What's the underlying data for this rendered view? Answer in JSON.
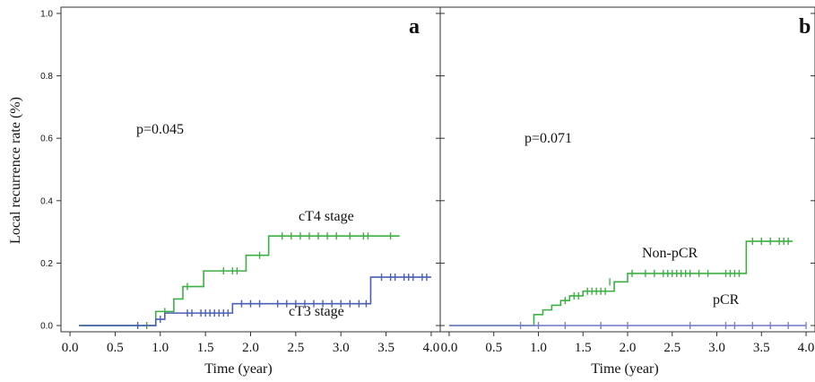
{
  "figure": {
    "ylabel": "Local recurrence rate (%)"
  },
  "chart_data": [
    {
      "type": "line",
      "panel_label": "a",
      "xlabel": "Time (year)",
      "ylabel": "Local recurrence rate (%)",
      "xlim": [
        -0.1,
        4.1
      ],
      "ylim": [
        -0.02,
        1.02
      ],
      "xticks": [
        "0.0",
        "0.5",
        "1.0",
        "1.5",
        "2.0",
        "2.5",
        "3.0",
        "3.5",
        "4.0"
      ],
      "yticks": [
        "0.0",
        "0.2",
        "0.4",
        "0.6",
        "0.8",
        "1.0"
      ],
      "pvalue_text": "p=0.045",
      "series": [
        {
          "name": "cT4 stage",
          "color": "#3cb043",
          "steps": [
            [
              0.1,
              0.0
            ],
            [
              0.95,
              0.045
            ],
            [
              1.15,
              0.085
            ],
            [
              1.25,
              0.125
            ],
            [
              1.48,
              0.175
            ],
            [
              1.95,
              0.225
            ],
            [
              2.2,
              0.287
            ]
          ],
          "end_x": 3.65,
          "censors": [
            [
              0.85,
              0.0
            ],
            [
              1.05,
              0.045
            ],
            [
              1.3,
              0.125
            ],
            [
              1.7,
              0.175
            ],
            [
              1.8,
              0.175
            ],
            [
              1.85,
              0.175
            ],
            [
              2.1,
              0.225
            ],
            [
              2.35,
              0.287
            ],
            [
              2.45,
              0.287
            ],
            [
              2.55,
              0.287
            ],
            [
              2.65,
              0.287
            ],
            [
              2.75,
              0.287
            ],
            [
              2.85,
              0.287
            ],
            [
              2.95,
              0.287
            ],
            [
              3.1,
              0.287
            ],
            [
              3.25,
              0.287
            ],
            [
              3.3,
              0.287
            ],
            [
              3.55,
              0.287
            ]
          ]
        },
        {
          "name": "cT3 stage",
          "color": "#4a5fb5",
          "steps": [
            [
              0.1,
              0.0
            ],
            [
              0.95,
              0.02
            ],
            [
              1.05,
              0.04
            ],
            [
              1.8,
              0.07
            ],
            [
              3.33,
              0.155
            ]
          ],
          "end_x": 4.0,
          "censors": [
            [
              0.75,
              0.0
            ],
            [
              1.0,
              0.02
            ],
            [
              1.3,
              0.04
            ],
            [
              1.35,
              0.04
            ],
            [
              1.45,
              0.04
            ],
            [
              1.5,
              0.04
            ],
            [
              1.55,
              0.04
            ],
            [
              1.6,
              0.04
            ],
            [
              1.65,
              0.04
            ],
            [
              1.7,
              0.04
            ],
            [
              1.75,
              0.04
            ],
            [
              1.9,
              0.07
            ],
            [
              2.0,
              0.07
            ],
            [
              2.1,
              0.07
            ],
            [
              2.3,
              0.07
            ],
            [
              2.4,
              0.07
            ],
            [
              2.5,
              0.07
            ],
            [
              2.6,
              0.07
            ],
            [
              2.7,
              0.07
            ],
            [
              2.8,
              0.07
            ],
            [
              2.9,
              0.07
            ],
            [
              3.0,
              0.07
            ],
            [
              3.1,
              0.07
            ],
            [
              3.2,
              0.07
            ],
            [
              3.28,
              0.07
            ],
            [
              3.45,
              0.155
            ],
            [
              3.55,
              0.155
            ],
            [
              3.6,
              0.155
            ],
            [
              3.7,
              0.155
            ],
            [
              3.75,
              0.155
            ],
            [
              3.8,
              0.155
            ],
            [
              3.9,
              0.155
            ],
            [
              3.95,
              0.155
            ]
          ]
        }
      ]
    },
    {
      "type": "line",
      "panel_label": "b",
      "xlabel": "Time (year)",
      "xlim": [
        -0.1,
        4.1
      ],
      "ylim": [
        -0.02,
        1.02
      ],
      "xticks": [
        "0.0",
        "0.5",
        "1.0",
        "1.5",
        "2.0",
        "2.5",
        "3.0",
        "3.5",
        "4.0"
      ],
      "pvalue_text": "p=0.071",
      "series": [
        {
          "name": "Non-pCR",
          "color": "#3cb043",
          "steps": [
            [
              0.0,
              0.0
            ],
            [
              0.95,
              0.035
            ],
            [
              1.05,
              0.05
            ],
            [
              1.15,
              0.065
            ],
            [
              1.25,
              0.08
            ],
            [
              1.35,
              0.095
            ],
            [
              1.5,
              0.11
            ],
            [
              1.85,
              0.14
            ],
            [
              2.0,
              0.167
            ],
            [
              3.33,
              0.27
            ]
          ],
          "end_x": 3.85,
          "censors": [
            [
              1.3,
              0.08
            ],
            [
              1.4,
              0.095
            ],
            [
              1.45,
              0.095
            ],
            [
              1.55,
              0.11
            ],
            [
              1.6,
              0.11
            ],
            [
              1.65,
              0.11
            ],
            [
              1.7,
              0.11
            ],
            [
              1.75,
              0.11
            ],
            [
              1.8,
              0.14
            ],
            [
              2.05,
              0.167
            ],
            [
              2.2,
              0.167
            ],
            [
              2.3,
              0.167
            ],
            [
              2.4,
              0.167
            ],
            [
              2.45,
              0.167
            ],
            [
              2.5,
              0.167
            ],
            [
              2.55,
              0.167
            ],
            [
              2.6,
              0.167
            ],
            [
              2.65,
              0.167
            ],
            [
              2.7,
              0.167
            ],
            [
              2.8,
              0.167
            ],
            [
              2.9,
              0.167
            ],
            [
              3.1,
              0.167
            ],
            [
              3.15,
              0.167
            ],
            [
              3.2,
              0.167
            ],
            [
              3.25,
              0.167
            ],
            [
              3.4,
              0.27
            ],
            [
              3.5,
              0.27
            ],
            [
              3.6,
              0.27
            ],
            [
              3.7,
              0.27
            ],
            [
              3.75,
              0.27
            ],
            [
              3.8,
              0.27
            ]
          ]
        },
        {
          "name": "pCR",
          "color": "#7b7fcc",
          "steps": [
            [
              0.0,
              0.0
            ]
          ],
          "end_x": 4.0,
          "censors": [
            [
              0.8,
              0.0
            ],
            [
              1.0,
              0.0
            ],
            [
              1.3,
              0.0
            ],
            [
              1.7,
              0.0
            ],
            [
              2.0,
              0.0
            ],
            [
              2.7,
              0.0
            ],
            [
              3.1,
              0.0
            ],
            [
              3.2,
              0.0
            ],
            [
              3.4,
              0.0
            ],
            [
              3.6,
              0.0
            ],
            [
              3.8,
              0.0
            ],
            [
              4.0,
              0.0
            ]
          ]
        }
      ]
    }
  ]
}
